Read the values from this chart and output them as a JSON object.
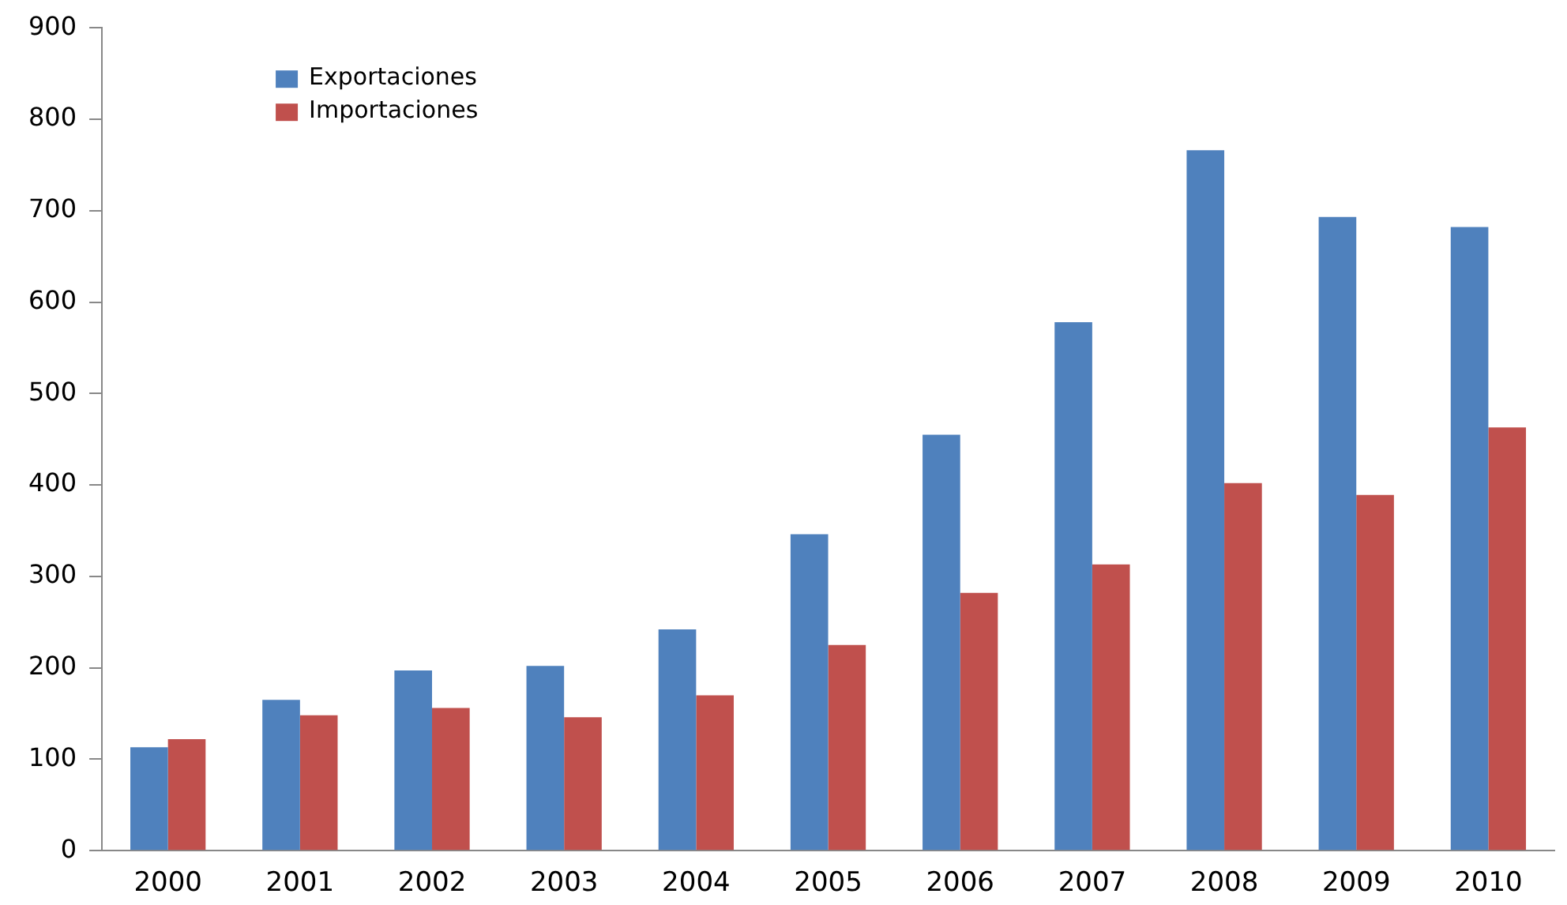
{
  "chart_data": {
    "type": "bar",
    "categories": [
      "2000",
      "2001",
      "2002",
      "2003",
      "2004",
      "2005",
      "2006",
      "2007",
      "2008",
      "2009",
      "2010"
    ],
    "series": [
      {
        "name": "Exportaciones",
        "color": "#4f81bd",
        "values": [
          113,
          165,
          197,
          202,
          242,
          346,
          455,
          578,
          766,
          693,
          682
        ]
      },
      {
        "name": "Importaciones",
        "color": "#c0504d",
        "values": [
          122,
          148,
          156,
          146,
          170,
          225,
          282,
          313,
          402,
          389,
          463
        ]
      }
    ],
    "ylim": [
      0,
      900
    ],
    "yticks": [
      0,
      100,
      200,
      300,
      400,
      500,
      600,
      700,
      800,
      900
    ],
    "grid": false,
    "legend": "top left"
  }
}
